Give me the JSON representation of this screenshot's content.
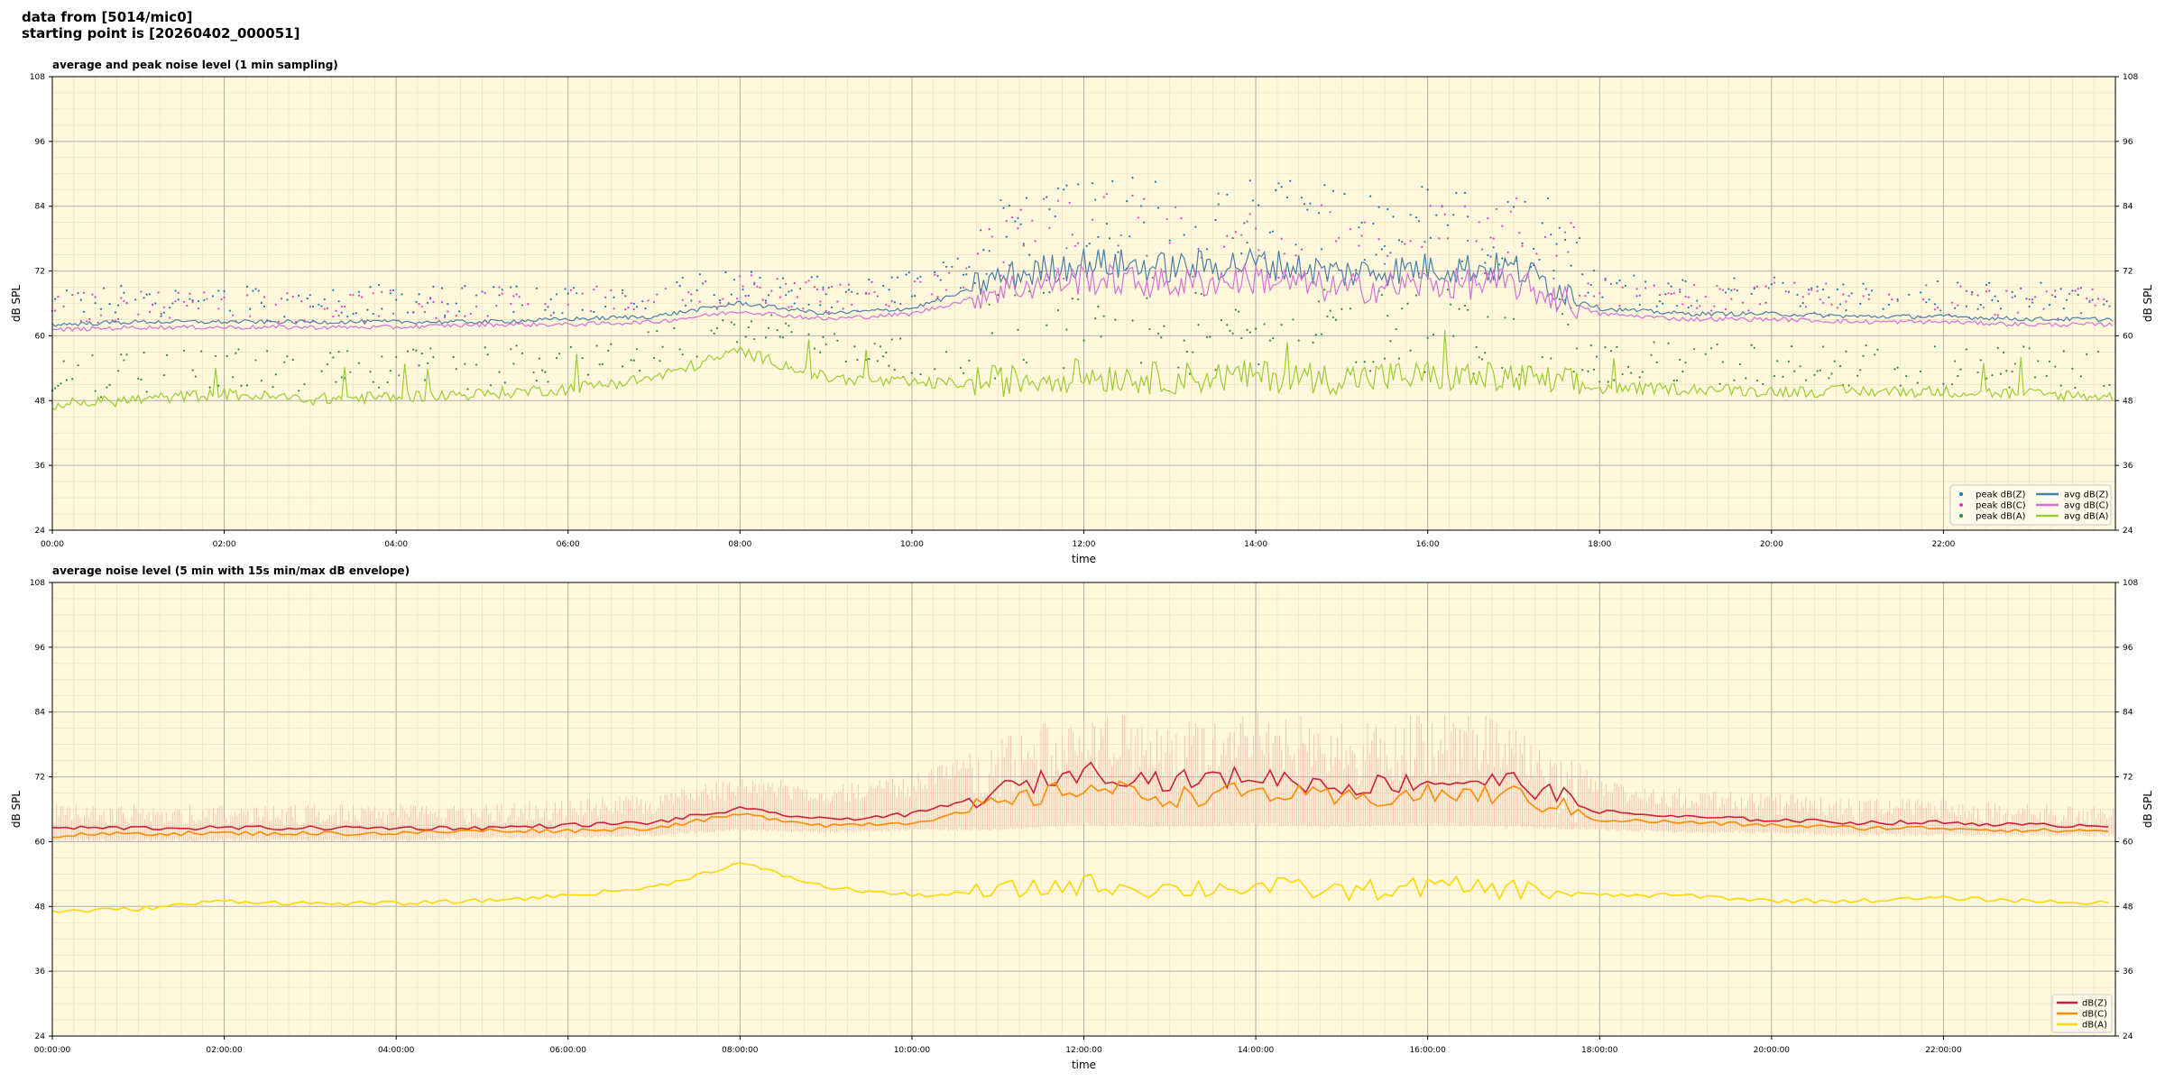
{
  "header": {
    "line1": "data from [5014/mic0]",
    "line2": "starting point is [20260402_000051]"
  },
  "chart_data": [
    {
      "type": "line",
      "title": "average and peak noise level (1 min sampling)",
      "xlabel": "time",
      "ylabel": "dB SPL",
      "ylim": [
        24,
        108
      ],
      "yticks": [
        "24",
        "36",
        "48",
        "60",
        "72",
        "84",
        "96",
        "108"
      ],
      "xlim_hours": [
        0,
        24
      ],
      "xticks": [
        "00:00",
        "02:00",
        "04:00",
        "06:00",
        "08:00",
        "10:00",
        "12:00",
        "14:00",
        "16:00",
        "18:00",
        "20:00",
        "22:00"
      ],
      "grid": true,
      "legend_position": "bottom-right",
      "legend": [
        "peak dB(Z)",
        "peak dB(C)",
        "peak dB(A)",
        "avg dB(Z)",
        "avg dB(C)",
        "avg dB(A)"
      ],
      "colors": {
        "peak_z": "#1f77b4",
        "peak_c": "#e040c0",
        "peak_a": "#2e8b3c",
        "avg_z": "#4a7fa8",
        "avg_c": "#d670d6",
        "avg_a": "#9acd32"
      },
      "x_hours": [
        0,
        1,
        2,
        3,
        4,
        5,
        6,
        7,
        8,
        9,
        10,
        11,
        12,
        13,
        14,
        15,
        16,
        17,
        18,
        19,
        20,
        21,
        22,
        23,
        24
      ],
      "series": [
        {
          "name": "avg dB(Z)",
          "values": [
            62,
            62.5,
            62.5,
            62.5,
            62.5,
            62.5,
            63,
            63.5,
            66,
            64,
            65,
            70,
            73,
            72,
            73,
            71,
            72,
            72,
            65,
            64,
            64,
            63.5,
            63.5,
            63,
            63
          ]
        },
        {
          "name": "avg dB(C)",
          "values": [
            61,
            61.5,
            61.5,
            61.5,
            61.5,
            62,
            62,
            62.5,
            64.5,
            63,
            64,
            68,
            70,
            69,
            70,
            68,
            69,
            69,
            64,
            63,
            63,
            62.5,
            62.5,
            62,
            62
          ]
        },
        {
          "name": "avg dB(A)",
          "values": [
            47,
            48,
            49,
            48,
            48.5,
            49,
            50,
            52,
            57,
            52,
            51,
            51,
            52,
            51.5,
            52,
            51.5,
            52,
            51.5,
            50,
            50,
            49.5,
            49.5,
            49.5,
            49,
            48.5
          ]
        }
      ]
    },
    {
      "type": "line",
      "title": "average noise level (5 min with 15s min/max dB envelope)",
      "xlabel": "time",
      "ylabel": "dB SPL",
      "ylim": [
        24,
        108
      ],
      "yticks": [
        "24",
        "36",
        "48",
        "60",
        "72",
        "84",
        "96",
        "108"
      ],
      "xlim_hours": [
        0,
        24
      ],
      "xticks": [
        "00:00:00",
        "02:00:00",
        "04:00:00",
        "06:00:00",
        "08:00:00",
        "10:00:00",
        "12:00:00",
        "14:00:00",
        "16:00:00",
        "18:00:00",
        "20:00:00",
        "22:00:00"
      ],
      "grid": true,
      "legend_position": "bottom-right",
      "legend": [
        "dB(Z)",
        "dB(C)",
        "dB(A)"
      ],
      "colors": {
        "z": "#cc1f3f",
        "c": "#ff8c00",
        "a": "#ffd700",
        "envelope": "#f4b8a8"
      },
      "x_hours": [
        0,
        1,
        2,
        3,
        4,
        5,
        6,
        7,
        8,
        9,
        10,
        11,
        12,
        13,
        14,
        15,
        16,
        17,
        18,
        19,
        20,
        21,
        22,
        23,
        24
      ],
      "series": [
        {
          "name": "dB(Z)",
          "values": [
            62.5,
            62.5,
            62.5,
            62.5,
            62.5,
            62.5,
            63,
            63.5,
            66,
            64,
            65,
            69,
            73,
            71,
            72,
            70,
            71,
            71,
            65.5,
            64.5,
            64,
            63.5,
            63.5,
            63,
            63
          ]
        },
        {
          "name": "dB(C)",
          "values": [
            61,
            61.5,
            61.5,
            61.5,
            61.5,
            62,
            62,
            62.5,
            65,
            63,
            63.5,
            66.5,
            70,
            68,
            69,
            67.5,
            68.5,
            68.5,
            64,
            63.5,
            63,
            62.5,
            62.5,
            62,
            62
          ]
        },
        {
          "name": "dB(A)",
          "values": [
            47,
            47.5,
            49,
            48.5,
            48.5,
            49,
            50,
            51.5,
            56,
            51.5,
            50,
            50.5,
            52,
            51,
            51.5,
            50.5,
            51.5,
            51,
            50,
            50,
            49,
            49,
            49.5,
            49,
            48.5
          ]
        },
        {
          "name": "envelope max",
          "values": [
            67,
            67,
            67,
            67,
            67,
            67,
            68,
            69,
            72,
            71,
            72,
            80,
            84,
            83,
            85,
            82,
            84,
            83,
            72,
            70,
            69,
            68,
            68,
            67,
            67
          ]
        },
        {
          "name": "envelope min",
          "values": [
            60,
            60,
            60,
            60,
            60,
            60.5,
            60.5,
            61,
            62,
            61.5,
            62,
            62,
            63,
            62.5,
            63,
            62.5,
            63,
            62.5,
            62,
            61.5,
            61.5,
            61,
            61,
            61,
            61
          ]
        }
      ]
    }
  ]
}
